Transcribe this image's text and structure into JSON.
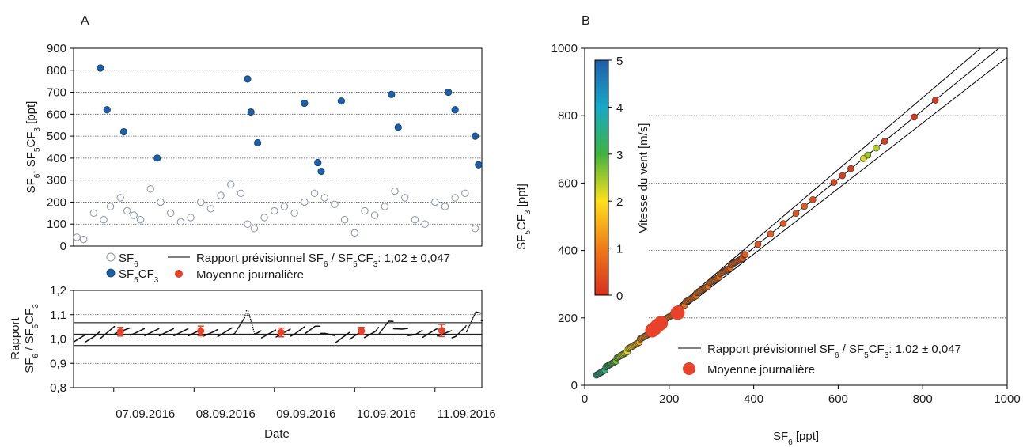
{
  "panels": {
    "a": "A",
    "b": "B"
  },
  "chart_data": [
    {
      "type": "scatter",
      "panel": "A (top)",
      "ylabel": "SF6, SF5CF3 [ppt]",
      "ylabel_parts": [
        "SF",
        "6",
        ", SF",
        "5",
        "CF",
        "3",
        "  [ppt]"
      ],
      "ylim": [
        0,
        900
      ],
      "yticks": [
        "0",
        "100",
        "200",
        "300",
        "400",
        "500",
        "600",
        "700",
        "800",
        "900"
      ],
      "xlim": [
        "2016-09-06T12:00",
        "2016-09-11T14:00"
      ],
      "grid": "horizontal dotted",
      "legend": {
        "sf6": [
          "SF",
          "6"
        ],
        "sf5cf3": [
          "SF",
          "5",
          "CF",
          "3"
        ],
        "ratio_line": [
          "Rapport prévisionnel SF",
          "6",
          " / SF",
          "5",
          "CF",
          "3",
          ": 1,02 ± 0,047"
        ],
        "daily_mean": "Moyenne journalière"
      },
      "series": [
        {
          "name": "SF6",
          "marker": "open circle",
          "color": "#ffffff",
          "x": [
            "2016-09-06T13:00",
            "2016-09-06T15:00",
            "2016-09-06T18:00",
            "2016-09-06T21:00",
            "2016-09-06T23:00",
            "2016-09-07T02:00",
            "2016-09-07T04:00",
            "2016-09-07T06:00",
            "2016-09-07T08:00",
            "2016-09-07T11:00",
            "2016-09-07T14:00",
            "2016-09-07T17:00",
            "2016-09-07T20:00",
            "2016-09-07T23:00",
            "2016-09-08T02:00",
            "2016-09-08T05:00",
            "2016-09-08T08:00",
            "2016-09-08T11:00",
            "2016-09-08T14:00",
            "2016-09-08T16:00",
            "2016-09-08T18:00",
            "2016-09-08T21:00",
            "2016-09-09T00:00",
            "2016-09-09T03:00",
            "2016-09-09T06:00",
            "2016-09-09T09:00",
            "2016-09-09T12:00",
            "2016-09-09T15:00",
            "2016-09-09T18:00",
            "2016-09-09T21:00",
            "2016-09-10T00:00",
            "2016-09-10T03:00",
            "2016-09-10T06:00",
            "2016-09-10T09:00",
            "2016-09-10T12:00",
            "2016-09-10T15:00",
            "2016-09-10T18:00",
            "2016-09-10T21:00",
            "2016-09-11T00:00",
            "2016-09-11T03:00",
            "2016-09-11T06:00",
            "2016-09-11T09:00",
            "2016-09-11T12:00"
          ],
          "values": [
            40,
            30,
            150,
            120,
            180,
            220,
            160,
            140,
            120,
            260,
            200,
            150,
            110,
            130,
            200,
            170,
            230,
            280,
            240,
            100,
            80,
            130,
            160,
            180,
            150,
            200,
            240,
            220,
            190,
            120,
            60,
            160,
            140,
            180,
            250,
            220,
            120,
            100,
            200,
            180,
            220,
            240,
            80
          ]
        },
        {
          "name": "SF5CF3",
          "marker": "filled circle",
          "color": "#1f5fa3",
          "x": [
            "2016-09-06T20:00",
            "2016-09-06T22:00",
            "2016-09-07T03:00",
            "2016-09-07T13:00",
            "2016-09-08T16:00",
            "2016-09-08T17:00",
            "2016-09-08T19:00",
            "2016-09-09T09:00",
            "2016-09-09T13:00",
            "2016-09-09T14:00",
            "2016-09-09T20:00",
            "2016-09-10T11:00",
            "2016-09-10T13:00",
            "2016-09-11T04:00",
            "2016-09-11T06:00",
            "2016-09-11T12:00",
            "2016-09-11T13:00"
          ],
          "values": [
            810,
            620,
            520,
            400,
            760,
            610,
            470,
            650,
            380,
            340,
            660,
            690,
            540,
            700,
            620,
            500,
            370
          ]
        }
      ],
      "xticks": [
        "07.09.2016",
        "08.09.2016",
        "09.09.2016",
        "10.09.2016",
        "11.09.2016"
      ]
    },
    {
      "type": "scatter",
      "panel": "A (bottom)",
      "ylabel_lines": [
        "Rapport",
        "SF6 / SF5CF3"
      ],
      "ylabel_parts_line1": [
        "Rapport"
      ],
      "ylabel_parts_line2": [
        "SF",
        "6",
        " / SF",
        "5",
        "CF",
        "3"
      ],
      "xlabel": "Date",
      "ylim": [
        0.8,
        1.2
      ],
      "yticks": [
        "0,8",
        "0,9",
        "1,0",
        "1,1",
        "1,2"
      ],
      "reference_lines": [
        1.02,
        1.067,
        0.973
      ],
      "series": [
        {
          "name": "Moyenne journalière",
          "color": "#e8432a",
          "x": [
            "2016-09-07T02:00",
            "2016-09-08T02:00",
            "2016-09-09T02:00",
            "2016-09-10T02:00",
            "2016-09-11T02:00"
          ],
          "values": [
            1.03,
            1.033,
            1.027,
            1.033,
            1.035
          ],
          "error": [
            0.018,
            0.02,
            0.018,
            0.015,
            0.025
          ]
        }
      ],
      "ratio_trace": {
        "x": [
          "2016-09-06T12:00",
          "2016-09-06T18:00",
          "2016-09-07T00:00",
          "2016-09-07T06:00",
          "2016-09-07T12:00",
          "2016-09-07T18:00",
          "2016-09-08T00:00",
          "2016-09-08T06:00",
          "2016-09-08T12:00",
          "2016-09-08T15:00",
          "2016-09-08T16:00",
          "2016-09-08T18:00",
          "2016-09-09T00:00",
          "2016-09-09T06:00",
          "2016-09-09T12:00",
          "2016-09-09T15:00",
          "2016-09-09T18:00",
          "2016-09-10T00:00",
          "2016-09-10T06:00",
          "2016-09-10T10:00",
          "2016-09-10T14:00",
          "2016-09-10T18:00",
          "2016-09-11T00:00",
          "2016-09-11T06:00",
          "2016-09-11T09:00",
          "2016-09-11T12:00",
          "2016-09-11T14:00"
        ],
        "values": [
          1.0,
          1.01,
          1.04,
          1.03,
          1.03,
          1.03,
          1.03,
          1.025,
          1.035,
          1.08,
          1.13,
          1.02,
          1.025,
          1.03,
          1.05,
          1.03,
          1.0,
          1.02,
          1.025,
          1.07,
          1.04,
          1.02,
          1.03,
          1.02,
          1.04,
          1.11,
          1.09
        ]
      },
      "xticks": [
        "07.09.2016",
        "08.09.2016",
        "09.09.2016",
        "10.09.2016",
        "11.09.2016"
      ]
    },
    {
      "type": "scatter",
      "panel": "B",
      "xlabel_parts": [
        "SF",
        "6",
        " [ppt]"
      ],
      "ylabel_parts": [
        "SF",
        "5",
        "CF",
        "3",
        "  [ppt]"
      ],
      "xlim": [
        0,
        1000
      ],
      "ylim": [
        0,
        1000
      ],
      "xticks": [
        "0",
        "200",
        "400",
        "600",
        "800",
        "1000"
      ],
      "yticks": [
        "0",
        "200",
        "400",
        "600",
        "800",
        "1000"
      ],
      "reference_slopes": [
        1.02,
        1.067,
        0.973
      ],
      "colorbar": {
        "label": "Vitesse du vent [m/s]",
        "range": [
          0,
          5
        ],
        "ticks": [
          "0",
          "1",
          "2",
          "3",
          "4",
          "5"
        ],
        "colors": [
          "#d7301f",
          "#f07a18",
          "#ffe01a",
          "#3fb33f",
          "#17a9c8",
          "#1e5ea8"
        ]
      },
      "legend": {
        "ratio_line": [
          "Rapport prévisionnel SF",
          "6",
          " / SF",
          "5",
          "CF",
          "3",
          ": 1,02 ± 0,047"
        ],
        "daily_mean": "Moyenne journalière"
      },
      "series": [
        {
          "name": "Moyenne journalière",
          "color": "#e8432a",
          "x": [
            160,
            165,
            172,
            180,
            220
          ],
          "y": [
            163,
            168,
            176,
            184,
            215
          ]
        }
      ],
      "points": {
        "x": [
          30,
          50,
          80,
          110,
          140,
          170,
          200,
          230,
          260,
          290,
          320,
          350,
          380,
          410,
          440,
          470,
          500,
          520,
          540,
          590,
          610,
          630,
          660,
          670,
          690,
          710,
          780,
          830
        ],
        "y": [
          30,
          50,
          81,
          112,
          143,
          173,
          204,
          234,
          265,
          295,
          326,
          357,
          388,
          418,
          449,
          480,
          510,
          531,
          551,
          602,
          622,
          643,
          673,
          683,
          704,
          724,
          796,
          846
        ],
        "wind": [
          3.6,
          3.4,
          2.6,
          2.0,
          1.2,
          0.8,
          1.0,
          0.9,
          0.8,
          0.9,
          0.8,
          0.7,
          0.6,
          0.5,
          0.6,
          0.5,
          0.5,
          0.6,
          0.4,
          0.3,
          0.2,
          0.2,
          2.2,
          2.5,
          2.4,
          0.2,
          0.1,
          0.1
        ]
      }
    }
  ]
}
